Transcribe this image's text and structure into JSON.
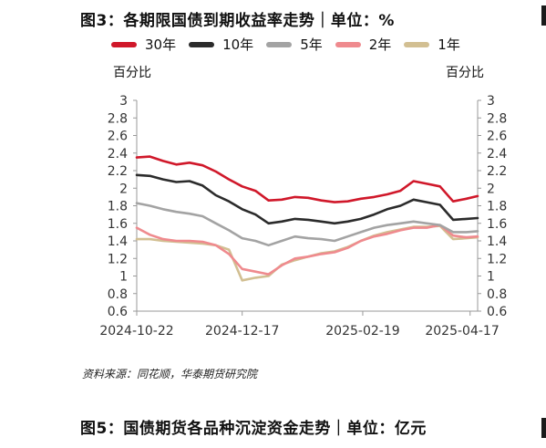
{
  "header": {
    "title": "图3：各期限国债到期收益率走势｜单位：%",
    "unit_left": "百分比",
    "unit_right": "百分比"
  },
  "footer": {
    "source": "资料来源：同花顺，华泰期货研究院",
    "next_title": "图5：国债期货各品种沉淀资金走势｜单位：亿元"
  },
  "colors": {
    "30y": "#d0182a",
    "10y": "#2b2b2b",
    "5y": "#a3a3a3",
    "2y": "#ef8a8e",
    "1y": "#d2bf92"
  },
  "chart_data": {
    "type": "line",
    "title": "图3：各期限国债到期收益率走势｜单位：%",
    "ylabel": "百分比",
    "ylim": [
      0.6,
      3
    ],
    "yticks": [
      "3",
      "2.8",
      "2.6",
      "2.4",
      "2.2",
      "2",
      "1.8",
      "1.6",
      "1.4",
      "1.2",
      "1",
      "0.8",
      "0.6"
    ],
    "xticks": [
      "2024-10-22",
      "2024-12-17",
      "2025-02-19",
      "2025-04-17"
    ],
    "xrange": [
      "2024-10-22",
      "2025-04-21"
    ],
    "grid": false,
    "legend": "top",
    "dates": [
      "2024-10-22",
      "2024-10-29",
      "2024-11-05",
      "2024-11-12",
      "2024-11-19",
      "2024-11-26",
      "2024-12-03",
      "2024-12-10",
      "2024-12-17",
      "2024-12-24",
      "2024-12-31",
      "2025-01-07",
      "2025-01-14",
      "2025-01-21",
      "2025-01-28",
      "2025-02-04",
      "2025-02-11",
      "2025-02-18",
      "2025-02-25",
      "2025-03-04",
      "2025-03-11",
      "2025-03-18",
      "2025-03-25",
      "2025-04-01",
      "2025-04-08",
      "2025-04-15",
      "2025-04-21"
    ],
    "series": [
      {
        "name": "30年",
        "color": "#d0182a",
        "values": [
          2.35,
          2.36,
          2.31,
          2.27,
          2.29,
          2.26,
          2.19,
          2.1,
          2.02,
          1.97,
          1.86,
          1.87,
          1.9,
          1.89,
          1.86,
          1.84,
          1.85,
          1.88,
          1.9,
          1.93,
          1.97,
          2.08,
          2.05,
          2.02,
          1.85,
          1.88,
          1.91
        ]
      },
      {
        "name": "10年",
        "color": "#2b2b2b",
        "values": [
          2.15,
          2.14,
          2.1,
          2.07,
          2.08,
          2.03,
          1.92,
          1.85,
          1.76,
          1.7,
          1.6,
          1.62,
          1.65,
          1.64,
          1.62,
          1.6,
          1.62,
          1.65,
          1.7,
          1.76,
          1.8,
          1.87,
          1.84,
          1.81,
          1.64,
          1.65,
          1.66
        ]
      },
      {
        "name": "5年",
        "color": "#a3a3a3",
        "values": [
          1.83,
          1.8,
          1.76,
          1.73,
          1.71,
          1.68,
          1.6,
          1.52,
          1.43,
          1.4,
          1.35,
          1.4,
          1.45,
          1.43,
          1.42,
          1.4,
          1.45,
          1.5,
          1.55,
          1.58,
          1.6,
          1.62,
          1.6,
          1.58,
          1.5,
          1.5,
          1.51
        ]
      },
      {
        "name": "2年",
        "color": "#ef8a8e",
        "values": [
          1.55,
          1.47,
          1.42,
          1.4,
          1.4,
          1.39,
          1.35,
          1.25,
          1.08,
          1.05,
          1.02,
          1.12,
          1.2,
          1.22,
          1.25,
          1.27,
          1.32,
          1.4,
          1.45,
          1.48,
          1.52,
          1.55,
          1.55,
          1.58,
          1.46,
          1.44,
          1.45
        ]
      },
      {
        "name": "1年",
        "color": "#d2bf92",
        "values": [
          1.42,
          1.42,
          1.4,
          1.39,
          1.38,
          1.37,
          1.35,
          1.3,
          0.95,
          0.98,
          1.0,
          1.13,
          1.18,
          1.22,
          1.26,
          1.28,
          1.33,
          1.4,
          1.46,
          1.5,
          1.53,
          1.56,
          1.56,
          1.57,
          1.42,
          1.43,
          1.44
        ]
      }
    ]
  }
}
